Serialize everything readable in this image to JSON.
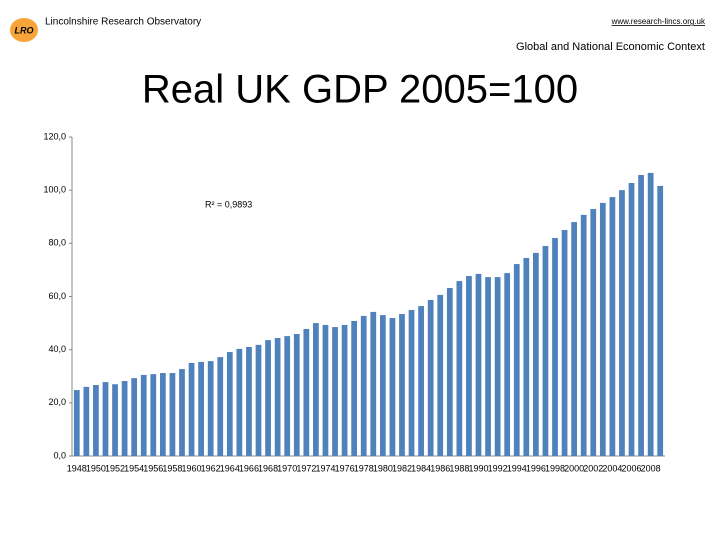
{
  "header": {
    "logo": "LRO",
    "organization": "Lincolnshire Research Observatory",
    "website": "www.research-lincs.org.uk",
    "section": "Global and National Economic Context"
  },
  "chart_data": {
    "type": "bar",
    "title": "Real UK GDP 2005=100",
    "annotation": "R² = 0,9893",
    "color": "#4f81bd",
    "grid": false,
    "categories": [
      "1948",
      null,
      "1950",
      null,
      "1952",
      null,
      "1954",
      null,
      "1956",
      null,
      "1958",
      null,
      "1960",
      null,
      "1962",
      null,
      "1964",
      null,
      "1966",
      null,
      "1968",
      null,
      "1970",
      null,
      "1972",
      null,
      "1974",
      null,
      "1976",
      null,
      "1978",
      null,
      "1980",
      null,
      "1982",
      null,
      "1984",
      null,
      "1986",
      null,
      "1988",
      null,
      "1990",
      null,
      "1992",
      null,
      "1994",
      null,
      "1996",
      null,
      "1998",
      null,
      "2000",
      null,
      "2002",
      null,
      "2004",
      null,
      "2006",
      null,
      "2008",
      null
    ],
    "values": [
      24.8,
      26,
      26.7,
      27.8,
      27,
      28.2,
      29.3,
      30.5,
      30.8,
      31.2,
      31.2,
      32.7,
      35,
      35.4,
      35.7,
      37.2,
      39.1,
      40.3,
      41,
      41.8,
      43.6,
      44.4,
      45.1,
      45.9,
      47.8,
      50,
      49.3,
      48.5,
      49.3,
      50.8,
      52.7,
      54.2,
      53,
      51.9,
      53.4,
      54.9,
      56.4,
      58.7,
      60.6,
      63.2,
      65.8,
      67.7,
      68.5,
      67.3,
      67.3,
      68.8,
      72.2,
      74.5,
      76.4,
      79,
      82,
      85,
      88,
      90.7,
      92.9,
      95.2,
      97.4,
      100,
      102.7,
      105.7,
      106.5,
      101.6
    ],
    "ylim": [
      0,
      120
    ],
    "yticks": [
      {
        "value": 0,
        "label": "0,0"
      },
      {
        "value": 20,
        "label": "20,0"
      },
      {
        "value": 40,
        "label": "40,0"
      },
      {
        "value": 60,
        "label": "60,0"
      },
      {
        "value": 80,
        "label": "80,0"
      },
      {
        "value": 100,
        "label": "100,0"
      },
      {
        "value": 120,
        "label": "120,0"
      }
    ]
  }
}
